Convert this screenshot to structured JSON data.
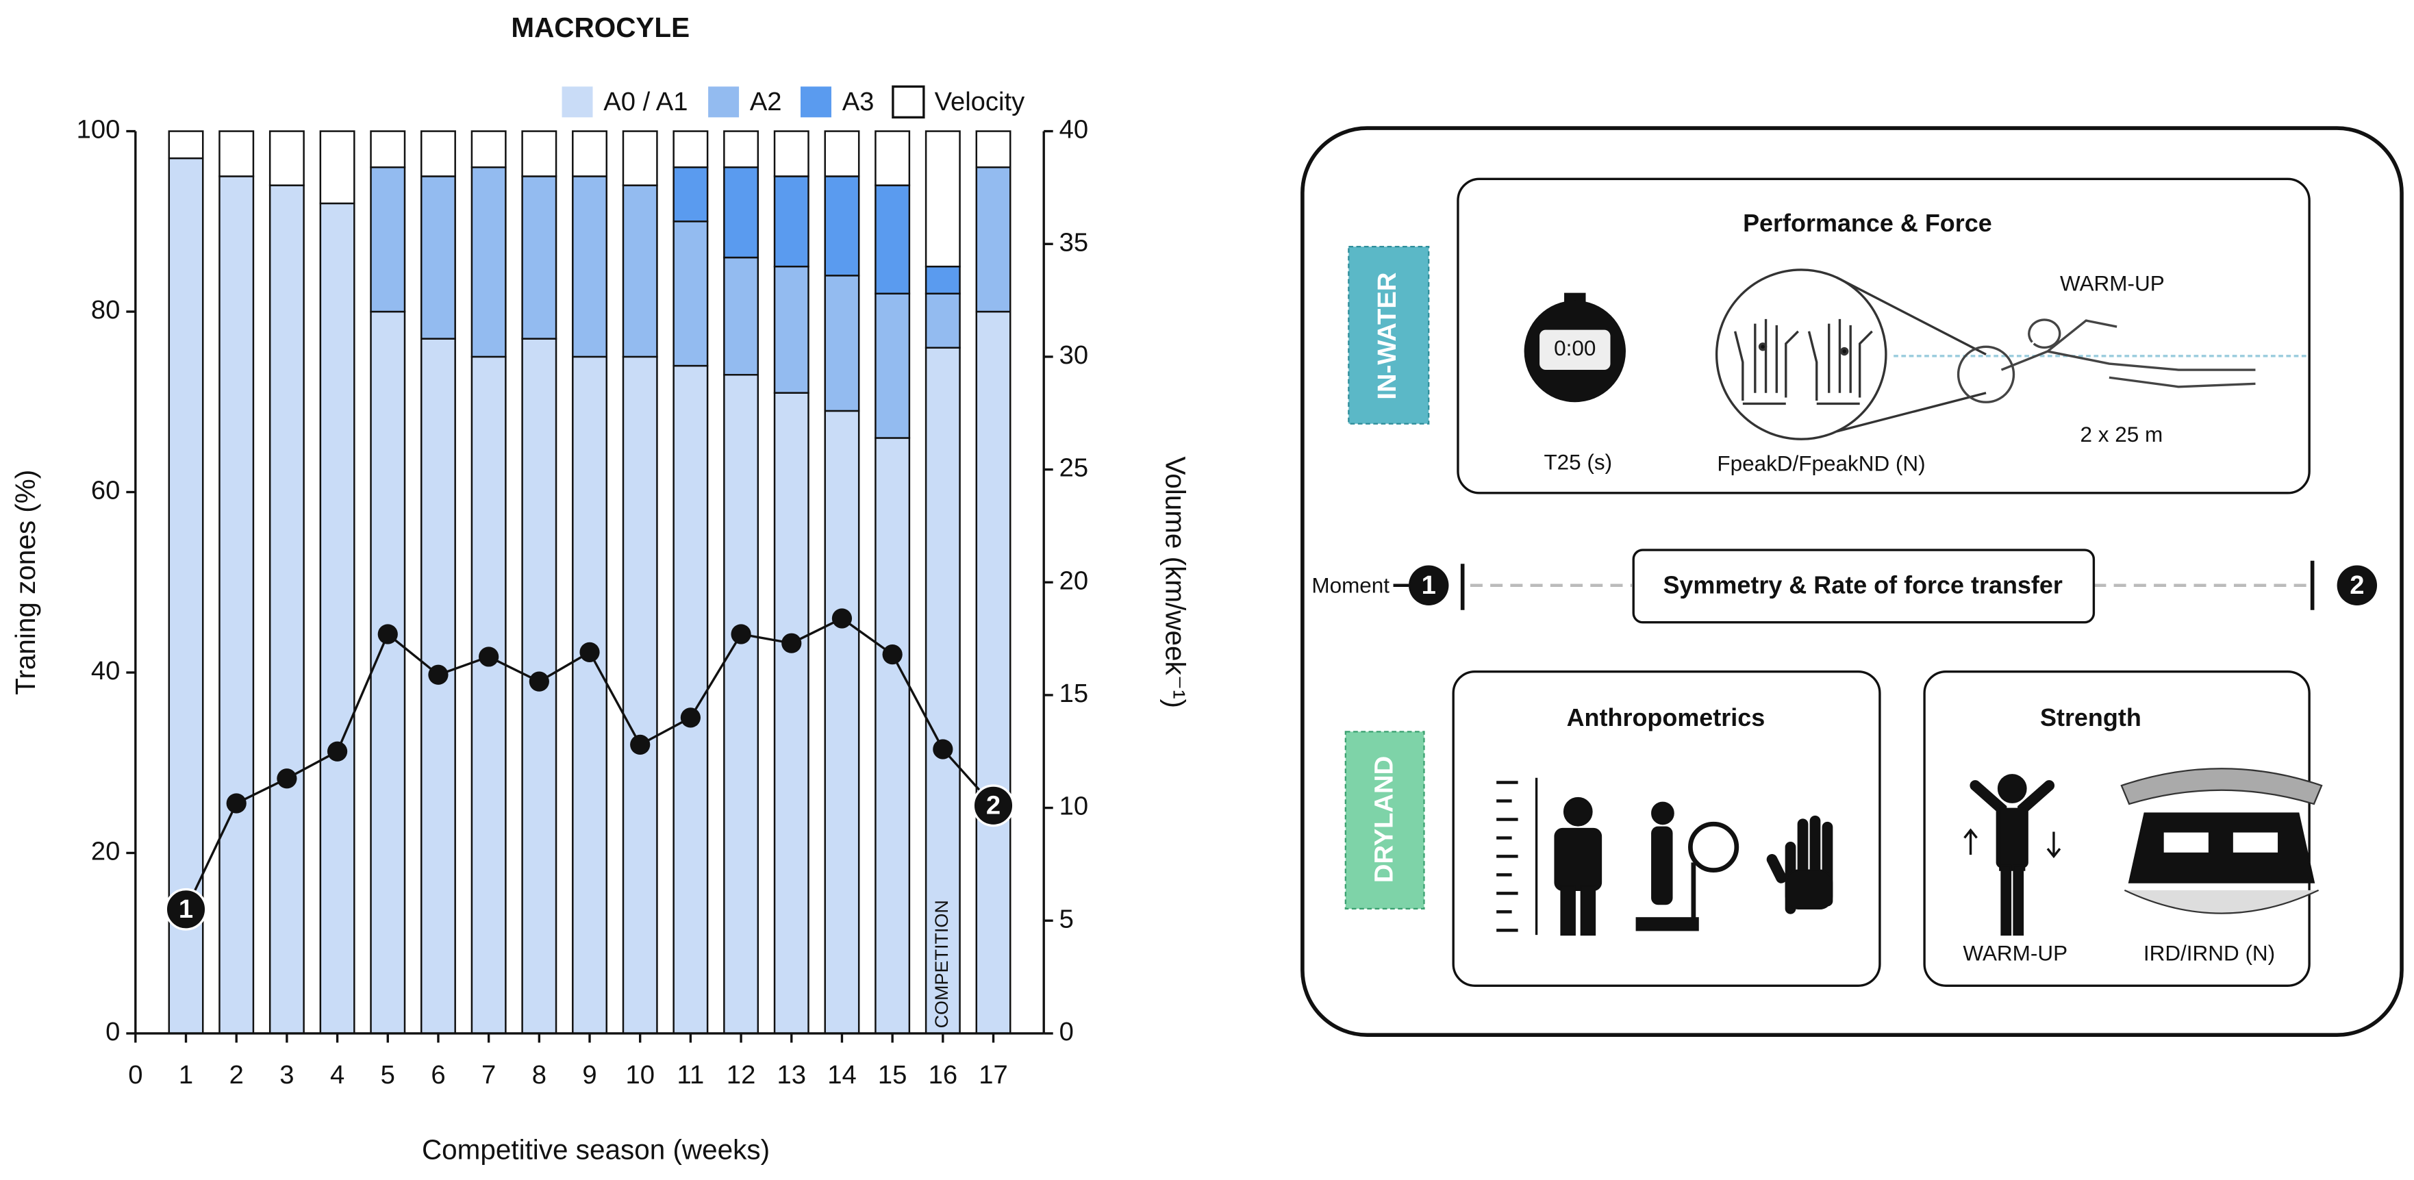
{
  "chart_data": {
    "type": "bar",
    "stacked": true,
    "title": "MACROCYLE",
    "x_label": "Competitive season (weeks)",
    "y_label": "Traning zones (%)",
    "y2_label": "Volume (km/week⁻¹)",
    "x": [
      1,
      2,
      3,
      4,
      5,
      6,
      7,
      8,
      9,
      10,
      11,
      12,
      13,
      14,
      15,
      16,
      17
    ],
    "xlim": [
      0,
      18
    ],
    "xticks": [
      0,
      1,
      2,
      3,
      4,
      5,
      6,
      7,
      8,
      9,
      10,
      11,
      12,
      13,
      14,
      15,
      16,
      17
    ],
    "ylim": [
      0,
      100
    ],
    "yticks": [
      0,
      20,
      40,
      60,
      80,
      100
    ],
    "y2lim": [
      0,
      40
    ],
    "y2ticks": [
      0,
      5,
      10,
      15,
      20,
      25,
      30,
      35,
      40
    ],
    "legend": "top-right",
    "series": [
      {
        "name": "A0 / A1",
        "color": "#c9dcf7",
        "values": [
          97,
          95,
          94,
          92,
          80,
          77,
          75,
          77,
          75,
          75,
          74,
          73,
          71,
          69,
          66,
          76,
          80
        ]
      },
      {
        "name": "A2",
        "color": "#93bbf0",
        "values": [
          0,
          0,
          0,
          0,
          16,
          18,
          21,
          18,
          20,
          19,
          16,
          13,
          14,
          15,
          16,
          6,
          16
        ]
      },
      {
        "name": "A3",
        "color": "#5a9bef",
        "values": [
          0,
          0,
          0,
          0,
          0,
          0,
          0,
          0,
          0,
          0,
          6,
          10,
          10,
          11,
          12,
          3,
          0
        ]
      },
      {
        "name": "Velocity",
        "color": "#ffffff",
        "values": [
          3,
          5,
          6,
          8,
          4,
          5,
          4,
          5,
          5,
          6,
          4,
          4,
          5,
          5,
          6,
          15,
          4
        ]
      },
      {
        "type": "line",
        "axis": "y2",
        "color": "#111111",
        "values": [
          5.5,
          10.2,
          11.3,
          12.5,
          17.7,
          15.9,
          16.7,
          15.6,
          16.9,
          12.8,
          14.0,
          17.7,
          17.3,
          18.4,
          16.8,
          12.6,
          10.1
        ]
      }
    ],
    "annotations": [
      {
        "text": "1",
        "x": 1
      },
      {
        "text": "2",
        "x": 17
      },
      {
        "text": "COMPETITION",
        "x": 16
      }
    ]
  },
  "diagram": {
    "in_water": {
      "label": "IN-WATER",
      "title": "Performance & Force",
      "stopwatch": "0:00",
      "items": [
        "T25 (s)",
        "FpeakD/FpeakND (N)",
        "2 x 25 m"
      ],
      "warmup": "WARM-UP"
    },
    "moment": {
      "label": "Moment",
      "start": "1",
      "end": "2",
      "title": "Symmetry & Rate of force transfer"
    },
    "dryland": {
      "label": "DRYLAND",
      "anthropometrics": "Anthropometrics",
      "strength": "Strength",
      "strength_items": [
        "WARM-UP",
        "IRD/IRND (N)"
      ]
    }
  }
}
